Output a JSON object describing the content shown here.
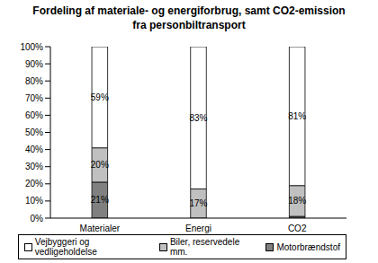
{
  "chart_data": {
    "type": "bar",
    "title": "Fordeling af materiale- og energiforbrug, samt CO2-emission fra personbiltransport",
    "categories": [
      "Materialer",
      "Energi",
      "CO2"
    ],
    "series": [
      {
        "name": "Motorbrændstof",
        "color": "#808080",
        "values": [
          21,
          0,
          1
        ],
        "value_labels": [
          "21%",
          null,
          null
        ]
      },
      {
        "name": "Biler, reservedele mm.",
        "color": "#c0c0c0",
        "values": [
          20,
          17,
          18
        ],
        "value_labels": [
          "20%",
          "17%",
          "18%"
        ]
      },
      {
        "name": "Vejbyggeri og vedligeholdelse",
        "color": "#ffffff",
        "values": [
          59,
          83,
          81
        ],
        "value_labels": [
          "59%",
          "83%",
          "81%"
        ]
      }
    ],
    "ylim": [
      0,
      100
    ],
    "yticks": [
      {
        "value": 0,
        "label": "0%"
      },
      {
        "value": 10,
        "label": "10%"
      },
      {
        "value": 20,
        "label": "20%"
      },
      {
        "value": 30,
        "label": "30%"
      },
      {
        "value": 40,
        "label": "40%"
      },
      {
        "value": 50,
        "label": "50%"
      },
      {
        "value": 60,
        "label": "60%"
      },
      {
        "value": 70,
        "label": "70%"
      },
      {
        "value": 80,
        "label": "80%"
      },
      {
        "value": 90,
        "label": "90%"
      },
      {
        "value": 100,
        "label": "100%"
      }
    ],
    "stacked": true,
    "data_labels": true,
    "legend": "bottom"
  }
}
